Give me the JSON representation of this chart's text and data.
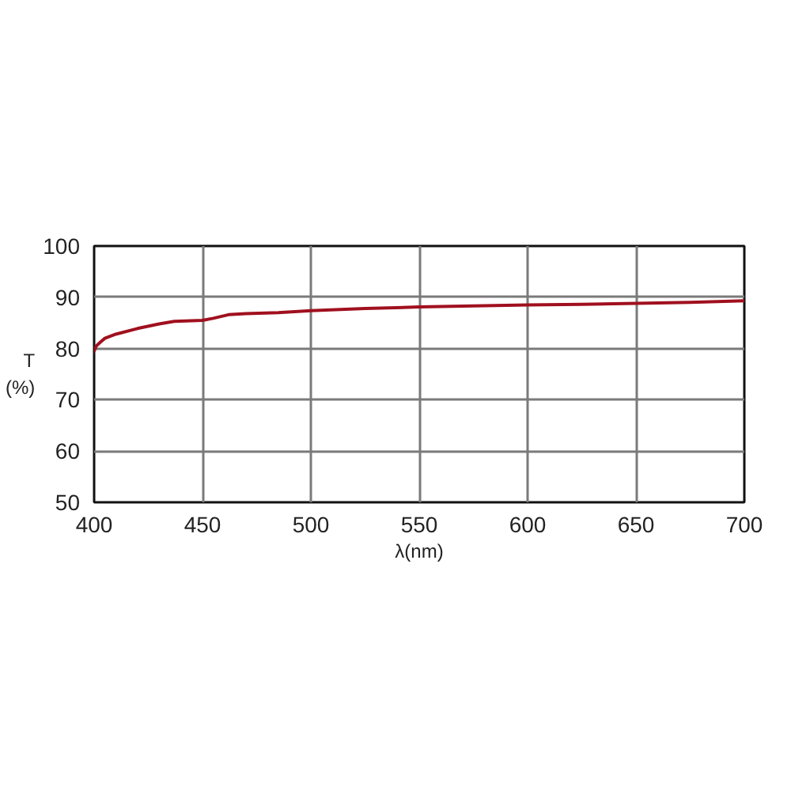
{
  "chart_data": {
    "type": "line",
    "xlabel": "λ(nm)",
    "ylabel": "T\n(%)",
    "x": [
      400,
      401,
      403,
      405,
      410,
      420,
      430,
      437,
      450,
      455,
      462,
      470,
      485,
      500,
      525,
      550,
      575,
      600,
      625,
      650,
      675,
      700
    ],
    "series": [
      {
        "color": "#a0101e",
        "values": [
          79.5,
          80.5,
          81.3,
          82.0,
          82.8,
          83.9,
          84.8,
          85.3,
          85.5,
          85.9,
          86.6,
          86.8,
          87.0,
          87.4,
          87.8,
          88.1,
          88.3,
          88.5,
          88.6,
          88.8,
          89.0,
          89.3
        ]
      }
    ],
    "xlim": [
      400,
      700
    ],
    "ylim": [
      50,
      100
    ],
    "xticks": [
      400,
      450,
      500,
      550,
      600,
      650,
      700
    ],
    "yticks": [
      50,
      60,
      70,
      80,
      90,
      100
    ],
    "grid": true
  }
}
